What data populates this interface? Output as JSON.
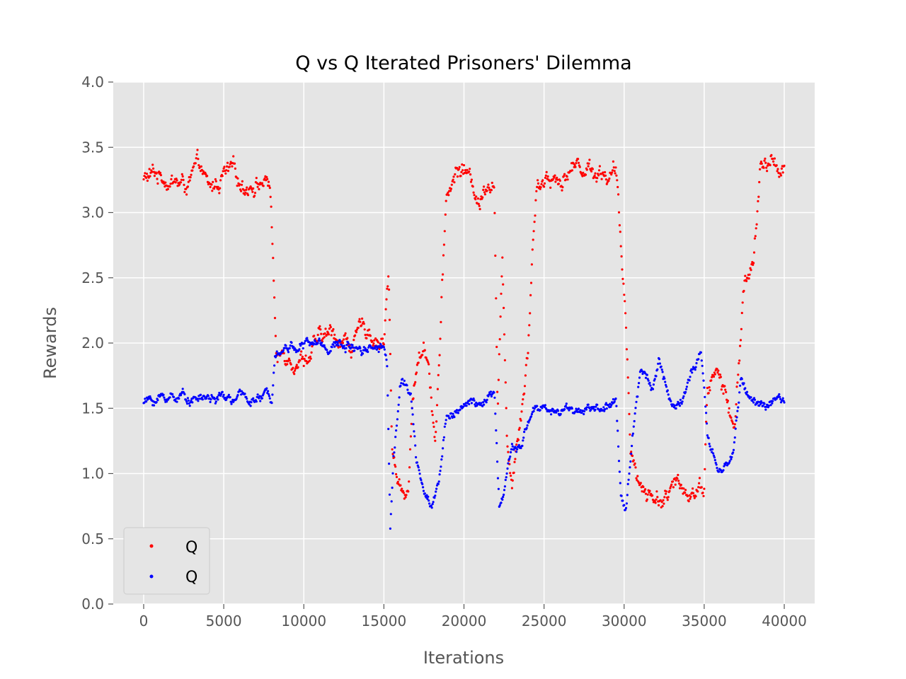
{
  "chart_data": {
    "type": "scatter",
    "title": "Q vs Q Iterated Prisoners' Dilemma",
    "xlabel": "Iterations",
    "ylabel": "Rewards",
    "xlim": [
      -1900,
      41900
    ],
    "ylim": [
      0.0,
      4.0
    ],
    "x_ticks": [
      "0",
      "5000",
      "10000",
      "15000",
      "20000",
      "25000",
      "30000",
      "35000",
      "40000"
    ],
    "y_ticks": [
      "0.0",
      "0.5",
      "1.0",
      "1.5",
      "2.0",
      "2.5",
      "3.0",
      "3.5",
      "4.0"
    ],
    "grid": true,
    "legend_position": "lower-left",
    "series": [
      {
        "name": "Q",
        "color": "#ff0000",
        "noise": 0.09,
        "points": [
          [
            0,
            3.25
          ],
          [
            1500,
            3.3
          ],
          [
            2500,
            3.2
          ],
          [
            3500,
            3.3
          ],
          [
            4100,
            3.1
          ],
          [
            5000,
            3.28
          ],
          [
            6000,
            3.2
          ],
          [
            7000,
            3.28
          ],
          [
            7900,
            3.25
          ],
          [
            8150,
            2.4
          ],
          [
            8300,
            1.85
          ],
          [
            9000,
            1.95
          ],
          [
            10000,
            1.95
          ],
          [
            11000,
            2.0
          ],
          [
            12000,
            2.05
          ],
          [
            13000,
            2.0
          ],
          [
            14000,
            2.1
          ],
          [
            15000,
            2.05
          ],
          [
            15300,
            2.6
          ],
          [
            15500,
            1.2
          ],
          [
            15800,
            0.9
          ],
          [
            16500,
            0.85
          ],
          [
            16700,
            1.4
          ],
          [
            17000,
            1.8
          ],
          [
            17500,
            2.0
          ],
          [
            17800,
            1.9
          ],
          [
            18200,
            1.3
          ],
          [
            18500,
            2.0
          ],
          [
            18900,
            3.1
          ],
          [
            19500,
            3.3
          ],
          [
            20000,
            3.35
          ],
          [
            20500,
            3.2
          ],
          [
            21000,
            3.1
          ],
          [
            21500,
            3.3
          ],
          [
            21900,
            3.3
          ],
          [
            22100,
            1.5
          ],
          [
            22400,
            2.6
          ],
          [
            22700,
            1.3
          ],
          [
            23000,
            1.0
          ],
          [
            23500,
            1.5
          ],
          [
            24000,
            2.0
          ],
          [
            24300,
            2.8
          ],
          [
            24600,
            3.3
          ],
          [
            26000,
            3.3
          ],
          [
            27000,
            3.38
          ],
          [
            28500,
            3.35
          ],
          [
            29500,
            3.3
          ],
          [
            29800,
            2.7
          ],
          [
            30100,
            2.2
          ],
          [
            30400,
            1.3
          ],
          [
            30800,
            1.0
          ],
          [
            31500,
            0.85
          ],
          [
            33000,
            0.85
          ],
          [
            34000,
            0.9
          ],
          [
            35000,
            0.95
          ],
          [
            35200,
            1.7
          ],
          [
            35800,
            1.8
          ],
          [
            36400,
            1.55
          ],
          [
            36900,
            1.3
          ],
          [
            37200,
            1.9
          ],
          [
            37500,
            2.5
          ],
          [
            38100,
            2.6
          ],
          [
            38500,
            3.3
          ],
          [
            39000,
            3.35
          ],
          [
            40000,
            3.38
          ]
        ]
      },
      {
        "name": "Q",
        "color": "#0000ff",
        "noise": 0.05,
        "points": [
          [
            0,
            1.55
          ],
          [
            2000,
            1.6
          ],
          [
            4000,
            1.58
          ],
          [
            6000,
            1.56
          ],
          [
            8000,
            1.58
          ],
          [
            8200,
            2.0
          ],
          [
            10000,
            2.0
          ],
          [
            12000,
            1.98
          ],
          [
            14000,
            2.0
          ],
          [
            15000,
            2.0
          ],
          [
            15200,
            1.85
          ],
          [
            15400,
            0.6
          ],
          [
            15600,
            1.2
          ],
          [
            16000,
            1.7
          ],
          [
            16400,
            1.7
          ],
          [
            16700,
            1.6
          ],
          [
            17000,
            1.1
          ],
          [
            17500,
            0.85
          ],
          [
            18000,
            0.75
          ],
          [
            18500,
            1.0
          ],
          [
            18900,
            1.45
          ],
          [
            19500,
            1.5
          ],
          [
            21000,
            1.52
          ],
          [
            21900,
            1.6
          ],
          [
            22200,
            0.7
          ],
          [
            22600,
            0.9
          ],
          [
            23000,
            1.2
          ],
          [
            23500,
            1.15
          ],
          [
            24000,
            1.4
          ],
          [
            24400,
            1.5
          ],
          [
            26000,
            1.5
          ],
          [
            28000,
            1.5
          ],
          [
            29500,
            1.5
          ],
          [
            29800,
            0.8
          ],
          [
            30100,
            0.7
          ],
          [
            30500,
            1.3
          ],
          [
            31000,
            1.8
          ],
          [
            31800,
            1.7
          ],
          [
            32200,
            1.9
          ],
          [
            32700,
            1.6
          ],
          [
            33200,
            1.5
          ],
          [
            34000,
            1.7
          ],
          [
            34800,
            1.9
          ],
          [
            35200,
            1.25
          ],
          [
            35700,
            1.05
          ],
          [
            36200,
            1.0
          ],
          [
            36800,
            1.15
          ],
          [
            37300,
            1.75
          ],
          [
            37800,
            1.6
          ],
          [
            38500,
            1.52
          ],
          [
            40000,
            1.52
          ]
        ]
      }
    ]
  }
}
